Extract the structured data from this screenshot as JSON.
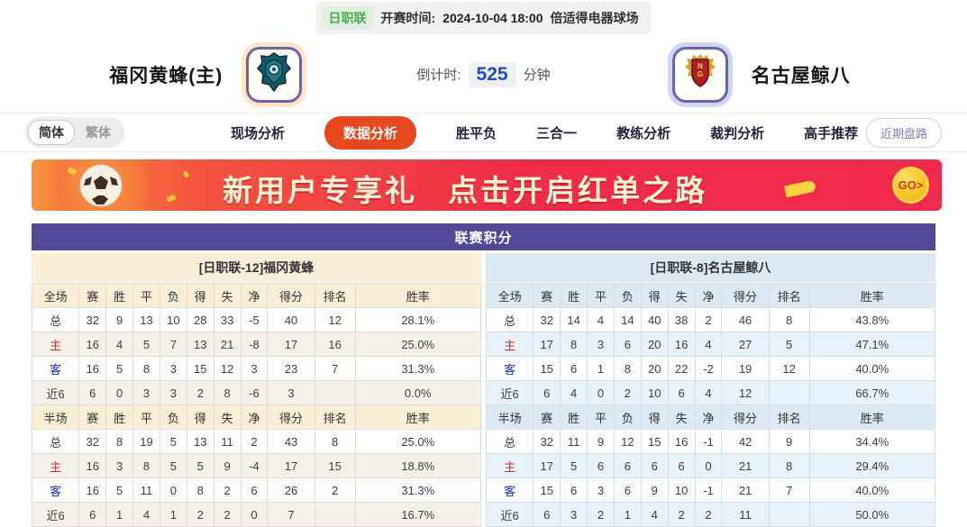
{
  "header": {
    "league_badge": "日职联",
    "kickoff_label": "开赛时间:",
    "kickoff_time": "2024-10-04 18:00",
    "venue": "倍适得电器球场",
    "home_team": "福冈黄蜂(主)",
    "away_team": "名古屋鲸八",
    "countdown_label": "倒计时:",
    "countdown_value": "525",
    "countdown_unit": "分钟"
  },
  "nav": {
    "lang_options": {
      "simplified": "简体",
      "traditional": "繁体"
    },
    "tabs": [
      {
        "label": "现场分析",
        "active": false
      },
      {
        "label": "数据分析",
        "active": true
      },
      {
        "label": "胜平负",
        "active": false
      },
      {
        "label": "三合一",
        "active": false
      },
      {
        "label": "教练分析",
        "active": false
      },
      {
        "label": "裁判分析",
        "active": false
      },
      {
        "label": "高手推荐",
        "active": false
      }
    ],
    "recent_button": "近期盘路"
  },
  "banner": {
    "line1": "新用户专享礼",
    "line2": "点击开启红单之路",
    "go_label": "GO>"
  },
  "colors": {
    "accent_orange": "#e8481e",
    "table_purple": "#54489b",
    "home_header_bg": "#f9efd6",
    "away_header_bg": "#dde9f3",
    "home_label_red": "#d42a1f",
    "away_label_blue": "#1f2fd0",
    "countdown_blue": "#1d4fc4",
    "league_green": "#4cab50"
  },
  "table": {
    "title": "联赛积分",
    "columns": [
      "赛",
      "胜",
      "平",
      "负",
      "得",
      "失",
      "净",
      "得分",
      "排名",
      "胜率"
    ],
    "home": {
      "section_title": "[日职联-12]福冈黄蜂",
      "full": {
        "scope": "全场",
        "rows": [
          {
            "label": "总",
            "type": "total",
            "values": [
              "32",
              "9",
              "13",
              "10",
              "28",
              "33",
              "-5",
              "40",
              "12",
              "28.1%"
            ]
          },
          {
            "label": "主",
            "type": "home",
            "values": [
              "16",
              "4",
              "5",
              "7",
              "13",
              "21",
              "-8",
              "17",
              "16",
              "25.0%"
            ]
          },
          {
            "label": "客",
            "type": "away",
            "values": [
              "16",
              "5",
              "8",
              "3",
              "15",
              "12",
              "3",
              "23",
              "7",
              "31.3%"
            ]
          },
          {
            "label": "近6",
            "type": "recent",
            "values": [
              "6",
              "0",
              "3",
              "3",
              "2",
              "8",
              "-6",
              "3",
              "",
              "0.0%"
            ]
          }
        ]
      },
      "half": {
        "scope": "半场",
        "rows": [
          {
            "label": "总",
            "type": "total",
            "values": [
              "32",
              "8",
              "19",
              "5",
              "13",
              "11",
              "2",
              "43",
              "8",
              "25.0%"
            ]
          },
          {
            "label": "主",
            "type": "home",
            "values": [
              "16",
              "3",
              "8",
              "5",
              "5",
              "9",
              "-4",
              "17",
              "15",
              "18.8%"
            ]
          },
          {
            "label": "客",
            "type": "away",
            "values": [
              "16",
              "5",
              "11",
              "0",
              "8",
              "2",
              "6",
              "26",
              "2",
              "31.3%"
            ]
          },
          {
            "label": "近6",
            "type": "recent",
            "values": [
              "6",
              "1",
              "4",
              "1",
              "2",
              "2",
              "0",
              "7",
              "",
              "16.7%"
            ]
          }
        ]
      }
    },
    "away": {
      "section_title": "[日职联-8]名古屋鲸八",
      "full": {
        "scope": "全场",
        "rows": [
          {
            "label": "总",
            "type": "total",
            "values": [
              "32",
              "14",
              "4",
              "14",
              "40",
              "38",
              "2",
              "46",
              "8",
              "43.8%"
            ]
          },
          {
            "label": "主",
            "type": "home",
            "values": [
              "17",
              "8",
              "3",
              "6",
              "20",
              "16",
              "4",
              "27",
              "5",
              "47.1%"
            ]
          },
          {
            "label": "客",
            "type": "away",
            "values": [
              "15",
              "6",
              "1",
              "8",
              "20",
              "22",
              "-2",
              "19",
              "12",
              "40.0%"
            ]
          },
          {
            "label": "近6",
            "type": "recent",
            "values": [
              "6",
              "4",
              "0",
              "2",
              "10",
              "6",
              "4",
              "12",
              "",
              "66.7%"
            ]
          }
        ]
      },
      "half": {
        "scope": "半场",
        "rows": [
          {
            "label": "总",
            "type": "total",
            "values": [
              "32",
              "11",
              "9",
              "12",
              "15",
              "16",
              "-1",
              "42",
              "9",
              "34.4%"
            ]
          },
          {
            "label": "主",
            "type": "home",
            "values": [
              "17",
              "5",
              "6",
              "6",
              "6",
              "6",
              "0",
              "21",
              "8",
              "29.4%"
            ]
          },
          {
            "label": "客",
            "type": "away",
            "values": [
              "15",
              "6",
              "3",
              "6",
              "9",
              "10",
              "-1",
              "21",
              "7",
              "40.0%"
            ]
          },
          {
            "label": "近6",
            "type": "recent",
            "values": [
              "6",
              "3",
              "2",
              "1",
              "4",
              "2",
              "2",
              "11",
              "",
              "50.0%"
            ]
          }
        ]
      }
    }
  }
}
